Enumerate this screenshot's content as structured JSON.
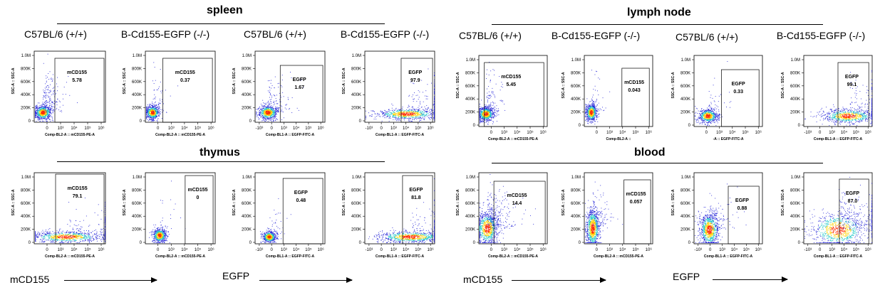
{
  "sections": {
    "spleen": "spleen",
    "lymph_node": "lymph node",
    "thymus": "thymus",
    "blood": "blood"
  },
  "column_titles": [
    "C57BL/6 (+/+)",
    "B-Cd155-EGFP (-/-)",
    "C57BL/6 (+/+)",
    "B-Cd155-EGFP (-/-)",
    "C57BL/6 (+/+)",
    "B-Cd155-EGFP (-/-)",
    "C57BL/6 (+/+)",
    "B-Cd155-EGFP (-/-)"
  ],
  "bottom_labels": {
    "left_mcd155": "mCD155",
    "left_egfp": "EGFP",
    "right_mcd155": "mCD155",
    "right_egfp": "EGFP"
  },
  "colors": {
    "density_low": "#1f1fd6",
    "density_mid": "#17c5c5",
    "density_high": "#ffd200",
    "density_peak": "#ff2a00"
  },
  "chart_data": [
    {
      "type": "scatter",
      "subtype": "flow-cytometry-density",
      "tissue": "spleen",
      "sample": "C57BL/6 (+/+)",
      "gate_label": "mCD155",
      "gate_value": "5.78",
      "ylabel": "SSC-A :: SSC-A",
      "xlabel": "Comp-BL2-A :: mCD155-PE-A",
      "yticks": [
        "0",
        "200K",
        "400K",
        "600K",
        "800K",
        "1.0M"
      ],
      "xticks": [
        "0",
        "10³",
        "10⁴",
        "10⁵",
        "10⁶"
      ]
    },
    {
      "type": "scatter",
      "subtype": "flow-cytometry-density",
      "tissue": "spleen",
      "sample": "B-Cd155-EGFP (-/-)",
      "gate_label": "mCD155",
      "gate_value": "0.37",
      "ylabel": "SSC-A :: SSC-A",
      "xlabel": "Comp-BL2-A :: mCD155-PE-A",
      "yticks": [
        "0",
        "200K",
        "400K",
        "600K",
        "800K",
        "1.0M"
      ],
      "xticks": [
        "0",
        "10³",
        "10⁴",
        "10⁵",
        "10⁶"
      ]
    },
    {
      "type": "scatter",
      "subtype": "flow-cytometry-density",
      "tissue": "spleen",
      "sample": "C57BL/6 (+/+)",
      "gate_label": "EGFP",
      "gate_value": "1.67",
      "ylabel": "SSC-A :: SSC-A",
      "xlabel": "Comp-BL1-A :: EGFP-FITC-A",
      "yticks": [
        "0",
        "200K",
        "400K",
        "600K",
        "800K",
        "1.0M"
      ],
      "xticks": [
        "-10³",
        "0",
        "10³",
        "10⁴",
        "10⁵",
        "10⁶"
      ]
    },
    {
      "type": "scatter",
      "subtype": "flow-cytometry-density",
      "tissue": "spleen",
      "sample": "B-Cd155-EGFP (-/-)",
      "gate_label": "EGFP",
      "gate_value": "97.9",
      "ylabel": "SSC-A :: SSC-A",
      "xlabel": "Comp-BL1-A :: EGFP-FITC-A",
      "yticks": [
        "0",
        "200K",
        "400K",
        "600K",
        "800K",
        "1.0M"
      ],
      "xticks": [
        "-10³",
        "0",
        "10³",
        "10⁴",
        "10⁵",
        "10⁶"
      ]
    },
    {
      "type": "scatter",
      "subtype": "flow-cytometry-density",
      "tissue": "lymph node",
      "sample": "C57BL/6 (+/+)",
      "gate_label": "mCD155",
      "gate_value": "5.45",
      "ylabel": "SSC-A :: SSC-A",
      "xlabel": "Comp-BL2-A :: mCD155-PE-A",
      "yticks": [
        "0",
        "200K",
        "400K",
        "600K",
        "800K",
        "1.0M"
      ],
      "xticks": [
        "0",
        "10³",
        "10⁴",
        "10⁵",
        "10⁶"
      ]
    },
    {
      "type": "scatter",
      "subtype": "flow-cytometry-density",
      "tissue": "lymph node",
      "sample": "B-Cd155-EGFP (-/-)",
      "gate_label": "mCD155",
      "gate_value": "0.043",
      "ylabel": "SSC-A :: SSC-A",
      "xlabel": "Comp-BL2-A ::",
      "yticks": [
        "0",
        "200K",
        "400K",
        "600K",
        "800K",
        "1.0M"
      ],
      "xticks": [
        "0",
        "10³",
        "10⁴",
        "10⁵",
        "10⁶"
      ]
    },
    {
      "type": "scatter",
      "subtype": "flow-cytometry-density",
      "tissue": "lymph node",
      "sample": "C57BL/6 (+/+)",
      "gate_label": "EGFP",
      "gate_value": "0.33",
      "ylabel": "SSC-A :: SSC-A",
      "xlabel": "-A :: EGFP-FITC-A",
      "yticks": [
        "0",
        "200K",
        "400K",
        "600K",
        "800K",
        "1.0M"
      ],
      "xticks": [
        "0",
        "10³",
        "10⁴",
        "10⁵",
        "10⁶"
      ]
    },
    {
      "type": "scatter",
      "subtype": "flow-cytometry-density",
      "tissue": "lymph node",
      "sample": "B-Cd155-EGFP (-/-)",
      "gate_label": "EGFP",
      "gate_value": "99.1",
      "ylabel": "SSC-A :: SSC-A",
      "xlabel": "Comp-BL1-A :: EGFP-FITC-A",
      "yticks": [
        "0",
        "200K",
        "400K",
        "600K",
        "800K",
        "1.0M"
      ],
      "xticks": [
        "-10³",
        "0",
        "10³",
        "10⁴",
        "10⁵",
        "10⁶"
      ]
    },
    {
      "type": "scatter",
      "subtype": "flow-cytometry-density",
      "tissue": "thymus",
      "sample": "C57BL/6 (+/+)",
      "gate_label": "mCD155",
      "gate_value": "79.1",
      "ylabel": "SSC-A :: SSC-A",
      "xlabel": "Comp-BL2-A :: mCD155-PE-A",
      "yticks": [
        "0",
        "200K",
        "400K",
        "600K",
        "800K",
        "1.0M"
      ],
      "xticks": [
        "0",
        "10³",
        "10⁴",
        "10⁵",
        "10⁶"
      ]
    },
    {
      "type": "scatter",
      "subtype": "flow-cytometry-density",
      "tissue": "thymus",
      "sample": "B-Cd155-EGFP (-/-)",
      "gate_label": "mCD155",
      "gate_value": "0",
      "ylabel": "SSC-A :: SSC-A",
      "xlabel": "Comp-BL2-A :: mCD155-PE-A",
      "yticks": [
        "0",
        "200K",
        "400K",
        "600K",
        "800K",
        "1.0M"
      ],
      "xticks": [
        "0",
        "10³",
        "10⁴",
        "10⁵",
        "10⁶"
      ]
    },
    {
      "type": "scatter",
      "subtype": "flow-cytometry-density",
      "tissue": "thymus",
      "sample": "C57BL/6 (+/+)",
      "gate_label": "EGFP",
      "gate_value": "0.48",
      "ylabel": "SSC-A :: SSC-A",
      "xlabel": "Comp-BL1-A :: EGFP-FITC-A",
      "yticks": [
        "0",
        "200K",
        "400K",
        "600K",
        "800K",
        "1.0M"
      ],
      "xticks": [
        "-10³",
        "0",
        "10³",
        "10⁴",
        "10⁵",
        "10⁶"
      ]
    },
    {
      "type": "scatter",
      "subtype": "flow-cytometry-density",
      "tissue": "thymus",
      "sample": "B-Cd155-EGFP (-/-)",
      "gate_label": "EGFP",
      "gate_value": "81.8",
      "ylabel": "SSC-A :: SSC-A",
      "xlabel": "Comp-BL1-A :: EGFP-FITC-A",
      "yticks": [
        "0",
        "200K",
        "400K",
        "600K",
        "800K",
        "1.0M"
      ],
      "xticks": [
        "-10³",
        "0",
        "10³",
        "10⁴",
        "10⁵",
        "10⁶"
      ]
    },
    {
      "type": "scatter",
      "subtype": "flow-cytometry-density",
      "tissue": "blood",
      "sample": "C57BL/6 (+/+)",
      "gate_label": "mCD155",
      "gate_value": "14.4",
      "ylabel": "SSC-A :: SSC-A",
      "xlabel": "Comp-BL2-A :: mCD155-PE-A",
      "yticks": [
        "0",
        "200K",
        "400K",
        "600K",
        "800K",
        "1.0M"
      ],
      "xticks": [
        "0",
        "10³",
        "10⁴",
        "10⁵",
        "10⁶"
      ]
    },
    {
      "type": "scatter",
      "subtype": "flow-cytometry-density",
      "tissue": "blood",
      "sample": "B-Cd155-EGFP (-/-)",
      "gate_label": "mCD155",
      "gate_value": "0.057",
      "ylabel": "SSC-A :: SSC-A",
      "xlabel": "Comp-BL2-A :: mCD155-PE-A",
      "yticks": [
        "0",
        "200K",
        "400K",
        "600K",
        "800K",
        "1.0M"
      ],
      "xticks": [
        "0",
        "10³",
        "10⁴",
        "10⁵",
        "10⁶"
      ]
    },
    {
      "type": "scatter",
      "subtype": "flow-cytometry-density",
      "tissue": "blood",
      "sample": "C57BL/6 (+/+)",
      "gate_label": "EGFP",
      "gate_value": "0.88",
      "ylabel": "SSC-A :: SSC-A",
      "xlabel": "Comp-BL1-A :: EGFP-FITC-A",
      "yticks": [
        "0",
        "200K",
        "400K",
        "600K",
        "800K",
        "1.0M"
      ],
      "xticks": [
        "-10³",
        "0",
        "10³",
        "10⁴",
        "10⁵",
        "10⁶"
      ]
    },
    {
      "type": "scatter",
      "subtype": "flow-cytometry-density",
      "tissue": "blood",
      "sample": "B-Cd155-EGFP (-/-)",
      "gate_label": "EGFP",
      "gate_value": "87.0",
      "ylabel": "SSC-A :: SSC-A",
      "xlabel": "Comp-BL1-A :: EGFP-FITC-A",
      "yticks": [
        "0",
        "200K",
        "400K",
        "600K",
        "800K",
        "1.0M"
      ],
      "xticks": [
        "-10³",
        "0",
        "10³",
        "10⁴",
        "10⁵",
        "10⁶"
      ]
    }
  ]
}
